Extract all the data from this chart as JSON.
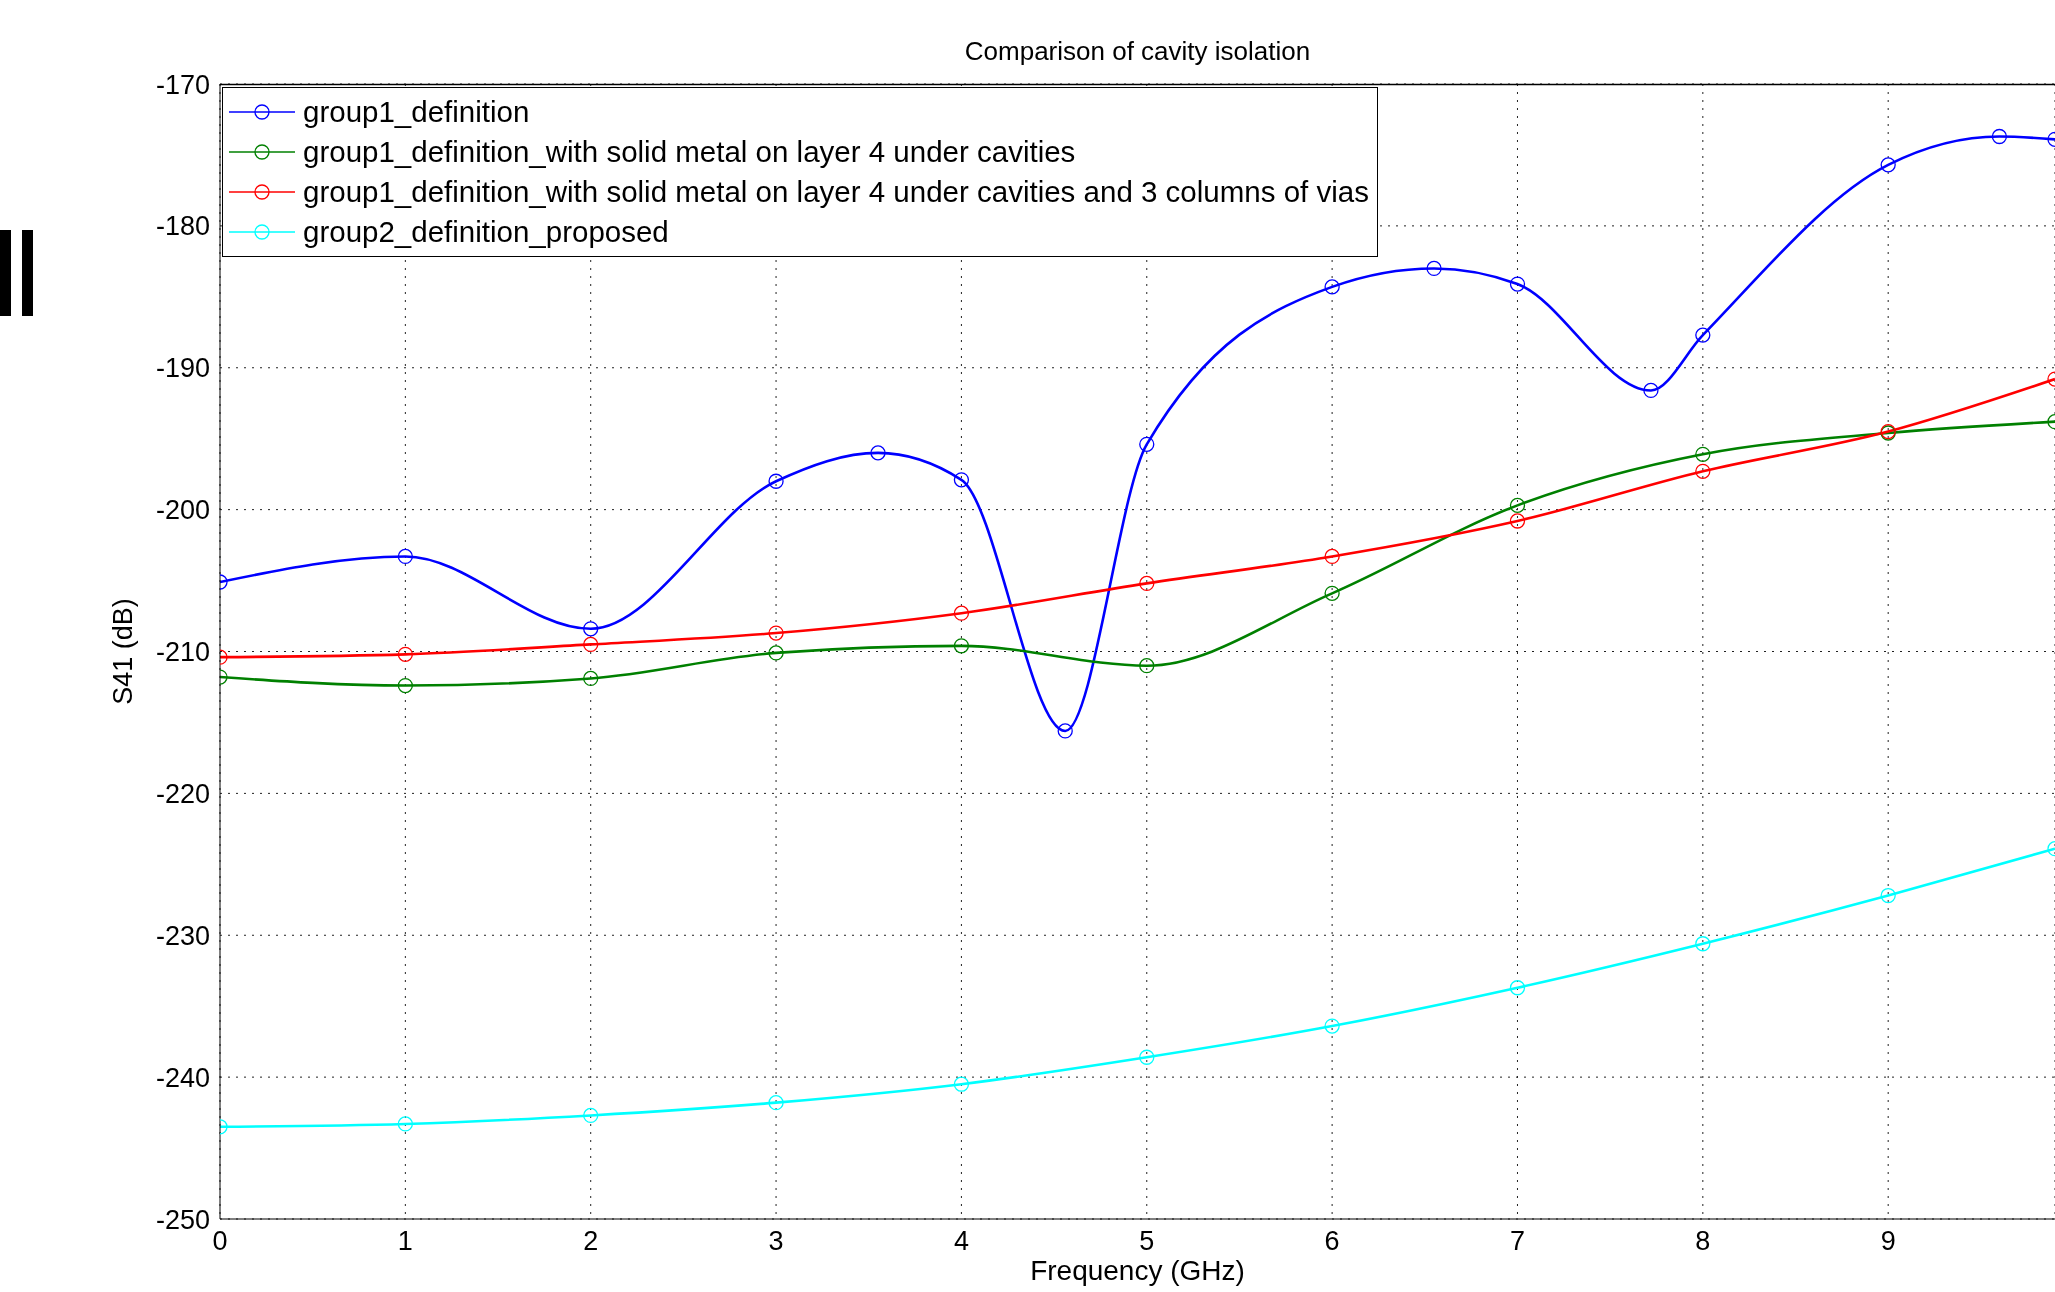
{
  "chart_data": {
    "type": "line",
    "title": "Comparison of cavity isolation",
    "xlabel": "Frequency (GHz)",
    "ylabel": "S41 (dB)",
    "xlim": [
      0,
      9.9
    ],
    "xticks": [
      0,
      1,
      2,
      3,
      4,
      5,
      6,
      7,
      8,
      9
    ],
    "ylim": [
      -250,
      -170
    ],
    "yticks": [
      -250,
      -240,
      -230,
      -220,
      -210,
      -200,
      -190,
      -180,
      -170
    ],
    "grid": true,
    "legend": "top left",
    "marker": "circle",
    "line_style": "solid",
    "series": [
      {
        "name": "group1_definition",
        "color": "#0000ff",
        "x": [
          0,
          1,
          2,
          3,
          3.55,
          4,
          4.56,
          5,
          6,
          6.55,
          7,
          7.72,
          8,
          9,
          9.6,
          9.9
        ],
        "values": [
          -205.1,
          -203.3,
          -208.4,
          -198.0,
          -196.0,
          -197.9,
          -215.6,
          -195.4,
          -184.3,
          -183.0,
          -184.1,
          -191.6,
          -187.7,
          -175.7,
          -173.7,
          -173.9
        ]
      },
      {
        "name": "group1_definition_with solid metal on layer 4 under cavities",
        "color": "#008000",
        "x": [
          0,
          1,
          2,
          3,
          4,
          5,
          6,
          7,
          8,
          9,
          9.9
        ],
        "values": [
          -211.8,
          -212.4,
          -211.9,
          -210.1,
          -209.6,
          -211.0,
          -205.9,
          -199.7,
          -196.1,
          -194.6,
          -193.8
        ]
      },
      {
        "name": "group1_definition_with solid metal on layer 4 under cavities and 3 columns of vias",
        "color": "#ff0000",
        "x": [
          0,
          1,
          2,
          3,
          4,
          5,
          6,
          7,
          8,
          9,
          9.9
        ],
        "values": [
          -210.4,
          -210.2,
          -209.5,
          -208.7,
          -207.3,
          -205.2,
          -203.3,
          -200.8,
          -197.3,
          -194.5,
          -190.8
        ]
      },
      {
        "name": "group2_definition_proposed",
        "color": "#00ffff",
        "x": [
          0,
          1,
          2,
          3,
          4,
          5,
          6,
          7,
          8,
          9,
          9.9
        ],
        "values": [
          -243.5,
          -243.3,
          -242.7,
          -241.8,
          -240.5,
          -238.6,
          -236.4,
          -233.7,
          -230.6,
          -227.2,
          -223.9
        ]
      }
    ]
  }
}
